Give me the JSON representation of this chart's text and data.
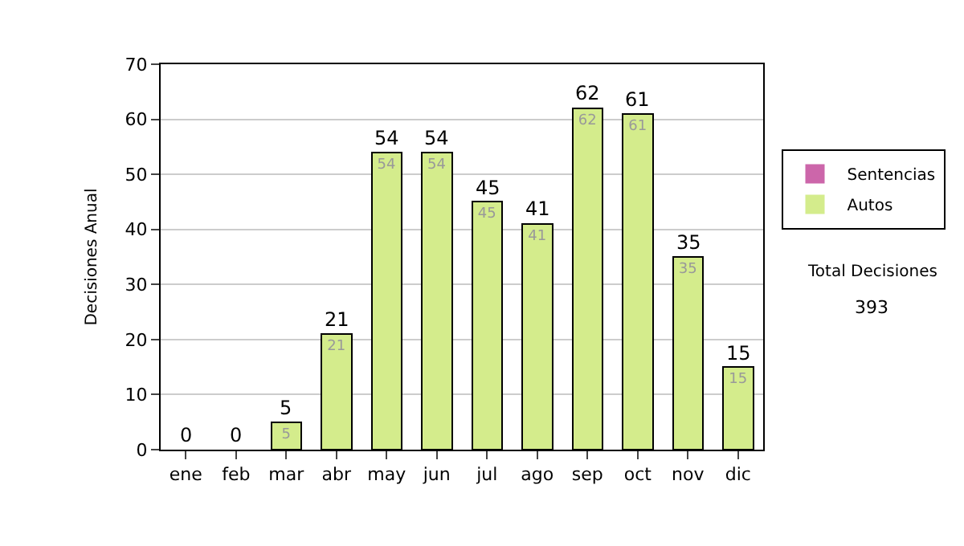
{
  "chart_data": {
    "type": "bar",
    "stacked": true,
    "ylabel": "Decisiones Anual",
    "categories": [
      "ene",
      "feb",
      "mar",
      "abr",
      "may",
      "jun",
      "jul",
      "ago",
      "sep",
      "oct",
      "nov",
      "dic"
    ],
    "series": [
      {
        "name": "Sentencias",
        "color": "#cc66aa",
        "values": [
          0,
          0,
          0,
          0,
          0,
          0,
          0,
          0,
          0,
          0,
          0,
          0
        ]
      },
      {
        "name": "Autos",
        "color": "#d4ec8c",
        "values": [
          0,
          0,
          5,
          21,
          54,
          54,
          45,
          41,
          62,
          61,
          35,
          15
        ],
        "value_labels": [
          null,
          null,
          "5",
          "21",
          "54",
          "54",
          "45",
          "41",
          "62",
          "61",
          "35",
          "15"
        ]
      }
    ],
    "totals": [
      "0",
      "0",
      "5",
      "21",
      "54",
      "54",
      "45",
      "41",
      "62",
      "61",
      "35",
      "15"
    ],
    "ylim": [
      0,
      70
    ],
    "yticks": [
      0,
      10,
      20,
      30,
      40,
      50,
      60,
      70
    ],
    "grid": "y",
    "legend": "right",
    "annotations": [
      "Total Decisiones",
      "393"
    ]
  }
}
